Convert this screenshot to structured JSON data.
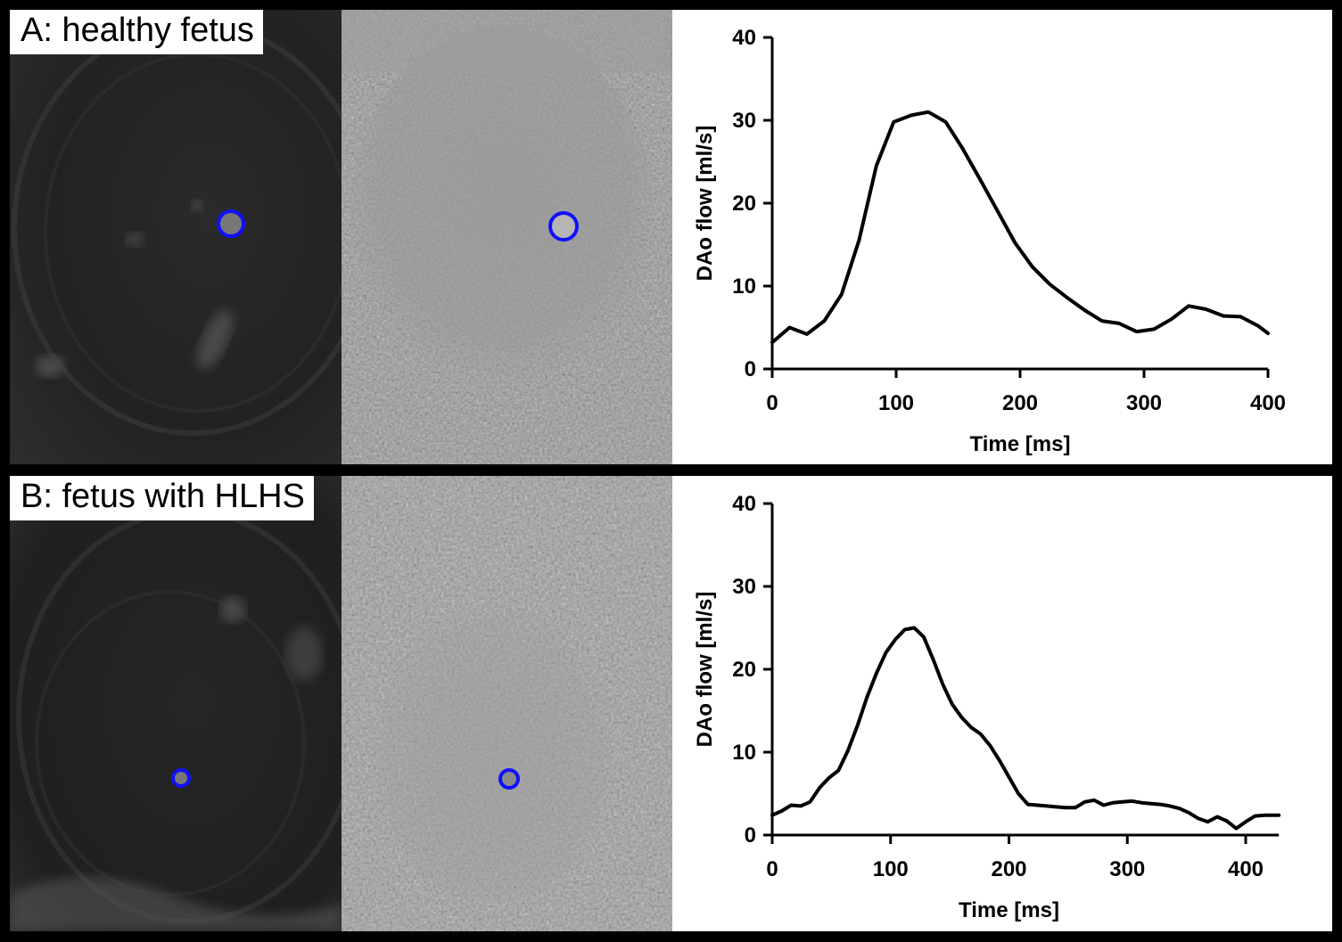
{
  "panels": [
    {
      "label": "A: healthy fetus",
      "roi_color": "#1010ff"
    },
    {
      "label": "B: fetus with HLHS",
      "roi_color": "#1010ff"
    }
  ],
  "chart_data": [
    {
      "type": "line",
      "title": "",
      "xlabel": "Time [ms]",
      "ylabel": "DAo flow [ml/s]",
      "xlim": [
        0,
        400
      ],
      "ylim": [
        0,
        40
      ],
      "xticks": [
        0,
        100,
        200,
        300,
        400
      ],
      "yticks": [
        0,
        10,
        20,
        30,
        40
      ],
      "grid": false,
      "line_color": "#000000",
      "series": [
        {
          "x": [
            0,
            14,
            28,
            42,
            56,
            70,
            84,
            98,
            112,
            126,
            140,
            154,
            168,
            182,
            196,
            210,
            224,
            238,
            252,
            266,
            280,
            294,
            308,
            322,
            336,
            350,
            364,
            378,
            392,
            400
          ],
          "values": [
            3.2,
            5.0,
            4.2,
            5.8,
            9.0,
            15.5,
            24.5,
            29.8,
            30.6,
            31.0,
            29.8,
            26.5,
            22.8,
            19.0,
            15.2,
            12.3,
            10.2,
            8.6,
            7.1,
            5.8,
            5.5,
            4.5,
            4.8,
            6.0,
            7.6,
            7.2,
            6.4,
            6.3,
            5.2,
            4.3
          ]
        }
      ]
    },
    {
      "type": "line",
      "title": "",
      "xlabel": "Time [ms]",
      "ylabel": "DAo flow [ml/s]",
      "xlim": [
        0,
        428
      ],
      "ylim": [
        0,
        40
      ],
      "xticks": [
        0,
        100,
        200,
        300,
        400
      ],
      "yticks": [
        0,
        10,
        20,
        30,
        40
      ],
      "grid": false,
      "line_color": "#000000",
      "series": [
        {
          "x": [
            0,
            8,
            16,
            24,
            32,
            40,
            48,
            56,
            64,
            72,
            80,
            88,
            96,
            104,
            112,
            120,
            128,
            136,
            144,
            152,
            160,
            168,
            176,
            184,
            192,
            200,
            208,
            216,
            224,
            232,
            240,
            248,
            256,
            264,
            272,
            280,
            288,
            296,
            304,
            312,
            320,
            328,
            336,
            344,
            352,
            360,
            368,
            376,
            384,
            392,
            400,
            408,
            416,
            428
          ],
          "values": [
            2.4,
            2.9,
            3.6,
            3.5,
            4.0,
            5.7,
            6.9,
            7.8,
            10.2,
            13.2,
            16.6,
            19.5,
            22.0,
            23.6,
            24.8,
            25.0,
            23.9,
            21.2,
            18.2,
            15.8,
            14.2,
            13.0,
            12.2,
            10.8,
            9.0,
            7.0,
            5.0,
            3.7,
            3.6,
            3.5,
            3.4,
            3.3,
            3.3,
            4.0,
            4.2,
            3.6,
            3.9,
            4.0,
            4.1,
            3.9,
            3.8,
            3.7,
            3.5,
            3.2,
            2.7,
            2.0,
            1.6,
            2.2,
            1.7,
            0.8,
            1.6,
            2.3,
            2.4,
            2.4
          ]
        }
      ]
    }
  ]
}
